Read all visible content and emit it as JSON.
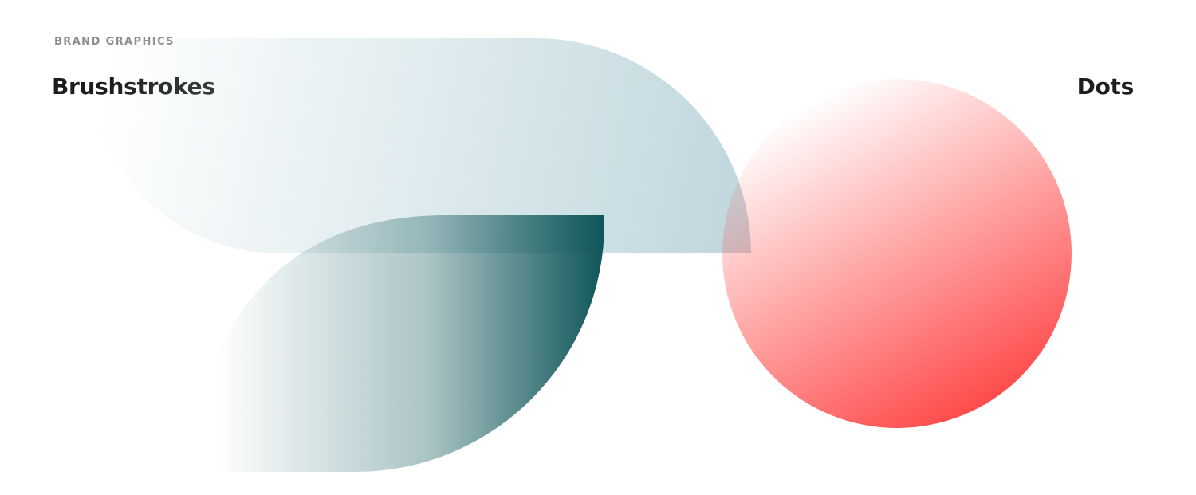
{
  "section_label": "BRAND GRAPHICS",
  "headings": {
    "brushstrokes": "Brushstrokes",
    "dots": "Dots"
  },
  "colors": {
    "pale_blue": "#c1d8de",
    "deep_teal": "#0e5559",
    "coral_red": "#ff4444",
    "heading_text": "#1d1d1d",
    "label_text": "#8e8e8e"
  },
  "graphics": [
    {
      "name": "brushstroke-pale-blue",
      "shape": "half-pill",
      "color": "#c1d8de"
    },
    {
      "name": "brushstroke-teal-leaf",
      "shape": "leaf",
      "color": "#0e5559"
    },
    {
      "name": "dot-coral",
      "shape": "circle",
      "color": "#ff4444"
    }
  ]
}
